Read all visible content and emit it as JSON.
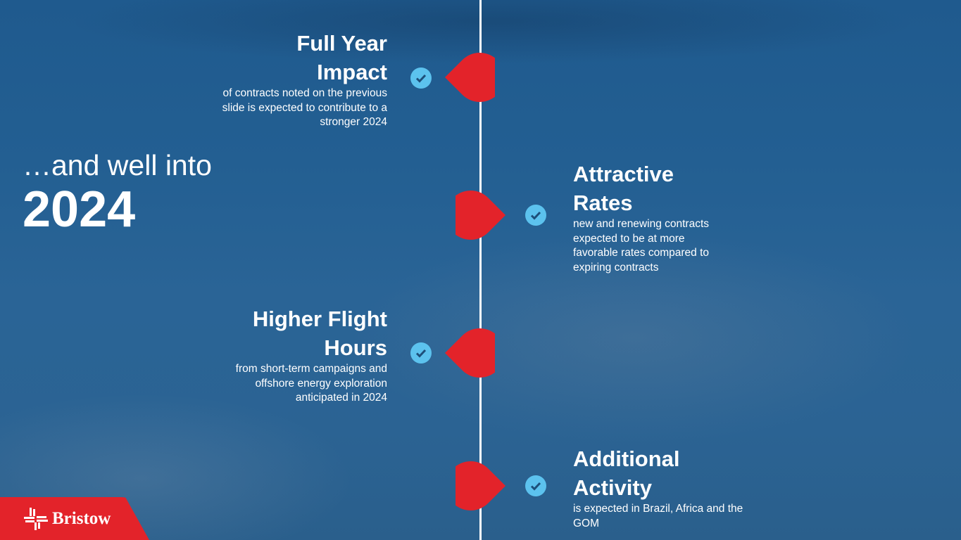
{
  "intro": {
    "line1": "…and well into",
    "year": "2024"
  },
  "items": [
    {
      "title1": "Full Year",
      "title2": "Impact",
      "desc": "of contracts noted on the previous slide is expected to contribute to a stronger 2024",
      "side": "left"
    },
    {
      "title1": "Attractive",
      "title2": "Rates",
      "desc": "new and renewing contracts expected to be at more favorable rates compared to expiring contracts",
      "side": "right"
    },
    {
      "title1": "Higher Flight",
      "title2": "Hours",
      "desc": "from short-term campaigns and offshore energy exploration anticipated in 2024",
      "side": "left"
    },
    {
      "title1": "Additional",
      "title2": "Activity",
      "desc": "is expected in Brazil, Africa and the GOM",
      "side": "right"
    }
  ],
  "logo": {
    "text": "Bristow"
  },
  "colors": {
    "accent": "#e3232a",
    "check": "#5cc2ee",
    "background": "#235f92"
  },
  "icons": {
    "marker": "teardrop-marker",
    "check": "check-circle-icon"
  }
}
